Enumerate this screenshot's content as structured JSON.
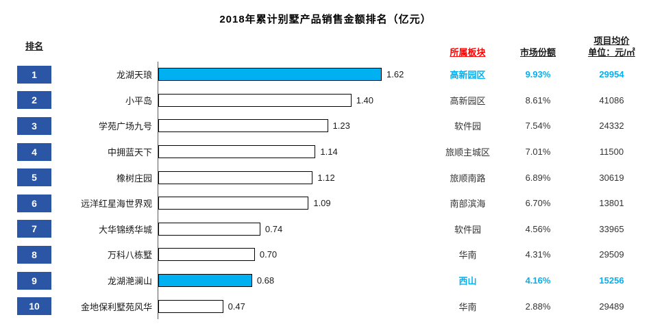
{
  "title": "2018年累计别墅产品销售金额排名（亿元）",
  "headers": {
    "rank": "排名",
    "sector": "所属板块",
    "share": "市场份额",
    "price_line1": "项目均价",
    "price_line2": "单位：元/㎡"
  },
  "colors": {
    "rank_box_blue": "#2b55a5",
    "highlight_cyan": "#00b0f0",
    "header_red": "#ff0000",
    "bar_border": "#000000",
    "axis_line": "#595959"
  },
  "rows": [
    {
      "rank": "1",
      "name": "龙湖天琅",
      "value": "1.62",
      "sector": "高新园区",
      "share": "9.93%",
      "price": "29954",
      "highlight": true
    },
    {
      "rank": "2",
      "name": "小平岛",
      "value": "1.40",
      "sector": "高新园区",
      "share": "8.61%",
      "price": "41086",
      "highlight": false
    },
    {
      "rank": "3",
      "name": "学苑广场九号",
      "value": "1.23",
      "sector": "软件园",
      "share": "7.54%",
      "price": "24332",
      "highlight": false
    },
    {
      "rank": "4",
      "name": "中拥蓝天下",
      "value": "1.14",
      "sector": "旅顺主城区",
      "share": "7.01%",
      "price": "11500",
      "highlight": false
    },
    {
      "rank": "5",
      "name": "橡树庄园",
      "value": "1.12",
      "sector": "旅顺南路",
      "share": "6.89%",
      "price": "30619",
      "highlight": false
    },
    {
      "rank": "6",
      "name": "远洋红星海世界观",
      "value": "1.09",
      "sector": "南部滨海",
      "share": "6.70%",
      "price": "13801",
      "highlight": false
    },
    {
      "rank": "7",
      "name": "大华锦绣华城",
      "value": "0.74",
      "sector": "软件园",
      "share": "4.56%",
      "price": "33965",
      "highlight": false
    },
    {
      "rank": "8",
      "name": "万科八栋墅",
      "value": "0.70",
      "sector": "华南",
      "share": "4.31%",
      "price": "29509",
      "highlight": false
    },
    {
      "rank": "9",
      "name": "龙湖滟澜山",
      "value": "0.68",
      "sector": "西山",
      "share": "4.16%",
      "price": "15256",
      "highlight": true
    },
    {
      "rank": "10",
      "name": "金地保利墅苑风华",
      "value": "0.47",
      "sector": "华南",
      "share": "2.88%",
      "price": "29489",
      "highlight": false
    }
  ],
  "chart_data": {
    "type": "bar",
    "orientation": "horizontal",
    "title": "2018年累计别墅产品销售金额排名（亿元）",
    "categories": [
      "龙湖天琅",
      "小平岛",
      "学苑广场九号",
      "中拥蓝天下",
      "橡树庄园",
      "远洋红星海世界观",
      "大华锦绣华城",
      "万科八栋墅",
      "龙湖滟澜山",
      "金地保利墅苑风华"
    ],
    "series": [
      {
        "name": "销售金额（亿元）",
        "values": [
          1.62,
          1.4,
          1.23,
          1.14,
          1.12,
          1.09,
          0.74,
          0.7,
          0.68,
          0.47
        ]
      },
      {
        "name": "市场份额",
        "values": [
          "9.93%",
          "8.61%",
          "7.54%",
          "7.01%",
          "6.89%",
          "6.70%",
          "4.56%",
          "4.31%",
          "4.16%",
          "2.88%"
        ]
      },
      {
        "name": "项目均价（元/㎡）",
        "values": [
          29954,
          41086,
          24332,
          11500,
          30619,
          13801,
          33965,
          29509,
          15256,
          29489
        ]
      },
      {
        "name": "所属板块",
        "values": [
          "高新园区",
          "高新园区",
          "软件园",
          "旅顺主城区",
          "旅顺南路",
          "南部滨海",
          "软件园",
          "华南",
          "西山",
          "华南"
        ]
      }
    ],
    "ranks": [
      1,
      2,
      3,
      4,
      5,
      6,
      7,
      8,
      9,
      10
    ],
    "highlighted_indices": [
      0,
      8
    ],
    "xlim": [
      0,
      2.0
    ],
    "grid": false,
    "data_labels": true,
    "legend_position": "none"
  }
}
